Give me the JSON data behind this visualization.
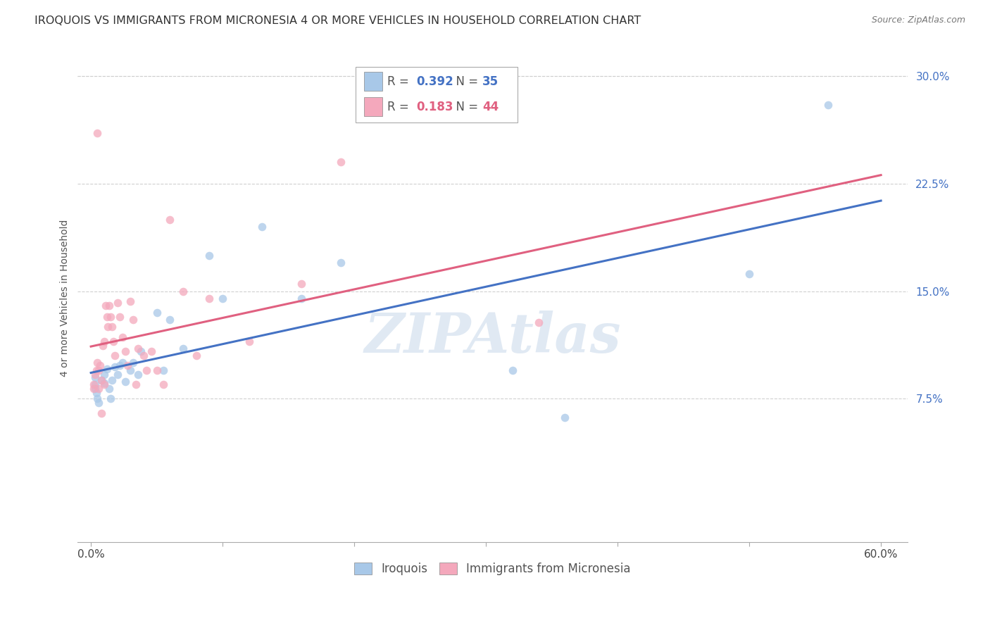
{
  "title": "IROQUOIS VS IMMIGRANTS FROM MICRONESIA 4 OR MORE VEHICLES IN HOUSEHOLD CORRELATION CHART",
  "source": "Source: ZipAtlas.com",
  "ylabel": "4 or more Vehicles in Household",
  "watermark": "ZIPAtlas",
  "xlim": [
    -0.01,
    0.62
  ],
  "ylim": [
    -0.025,
    0.315
  ],
  "ytick_positions": [
    0.075,
    0.15,
    0.225,
    0.3
  ],
  "ytick_labels": [
    "7.5%",
    "15.0%",
    "22.5%",
    "30.0%"
  ],
  "blue_color": "#a8c8e8",
  "pink_color": "#f4a8bc",
  "blue_line_color": "#4472c4",
  "pink_line_color": "#e06080",
  "dot_size": 70,
  "dot_alpha": 0.75,
  "iroquois_x": [
    0.003,
    0.003,
    0.003,
    0.004,
    0.005,
    0.006,
    0.008,
    0.01,
    0.01,
    0.012,
    0.014,
    0.015,
    0.016,
    0.018,
    0.02,
    0.022,
    0.024,
    0.026,
    0.03,
    0.032,
    0.036,
    0.038,
    0.05,
    0.055,
    0.06,
    0.07,
    0.09,
    0.1,
    0.13,
    0.16,
    0.19,
    0.32,
    0.36,
    0.5,
    0.56
  ],
  "iroquois_y": [
    0.09,
    0.085,
    0.082,
    0.079,
    0.075,
    0.072,
    0.088,
    0.092,
    0.086,
    0.096,
    0.082,
    0.075,
    0.088,
    0.097,
    0.092,
    0.098,
    0.1,
    0.087,
    0.095,
    0.1,
    0.092,
    0.108,
    0.135,
    0.095,
    0.13,
    0.11,
    0.175,
    0.145,
    0.195,
    0.145,
    0.17,
    0.095,
    0.062,
    0.162,
    0.28
  ],
  "micronesia_x": [
    0.002,
    0.002,
    0.003,
    0.004,
    0.005,
    0.005,
    0.006,
    0.006,
    0.007,
    0.008,
    0.008,
    0.009,
    0.01,
    0.01,
    0.011,
    0.012,
    0.013,
    0.014,
    0.015,
    0.016,
    0.017,
    0.018,
    0.02,
    0.022,
    0.024,
    0.026,
    0.028,
    0.03,
    0.032,
    0.034,
    0.036,
    0.04,
    0.042,
    0.046,
    0.05,
    0.055,
    0.06,
    0.07,
    0.08,
    0.09,
    0.12,
    0.16,
    0.19,
    0.34
  ],
  "micronesia_y": [
    0.085,
    0.082,
    0.092,
    0.095,
    0.1,
    0.26,
    0.095,
    0.082,
    0.098,
    0.088,
    0.065,
    0.112,
    0.115,
    0.085,
    0.14,
    0.132,
    0.125,
    0.14,
    0.132,
    0.125,
    0.115,
    0.105,
    0.142,
    0.132,
    0.118,
    0.108,
    0.098,
    0.143,
    0.13,
    0.085,
    0.11,
    0.105,
    0.095,
    0.108,
    0.095,
    0.085,
    0.2,
    0.15,
    0.105,
    0.145,
    0.115,
    0.155,
    0.24,
    0.128
  ],
  "background_color": "#ffffff",
  "grid_color": "#d0d0d0",
  "title_fontsize": 11.5,
  "label_fontsize": 10,
  "tick_fontsize": 11
}
